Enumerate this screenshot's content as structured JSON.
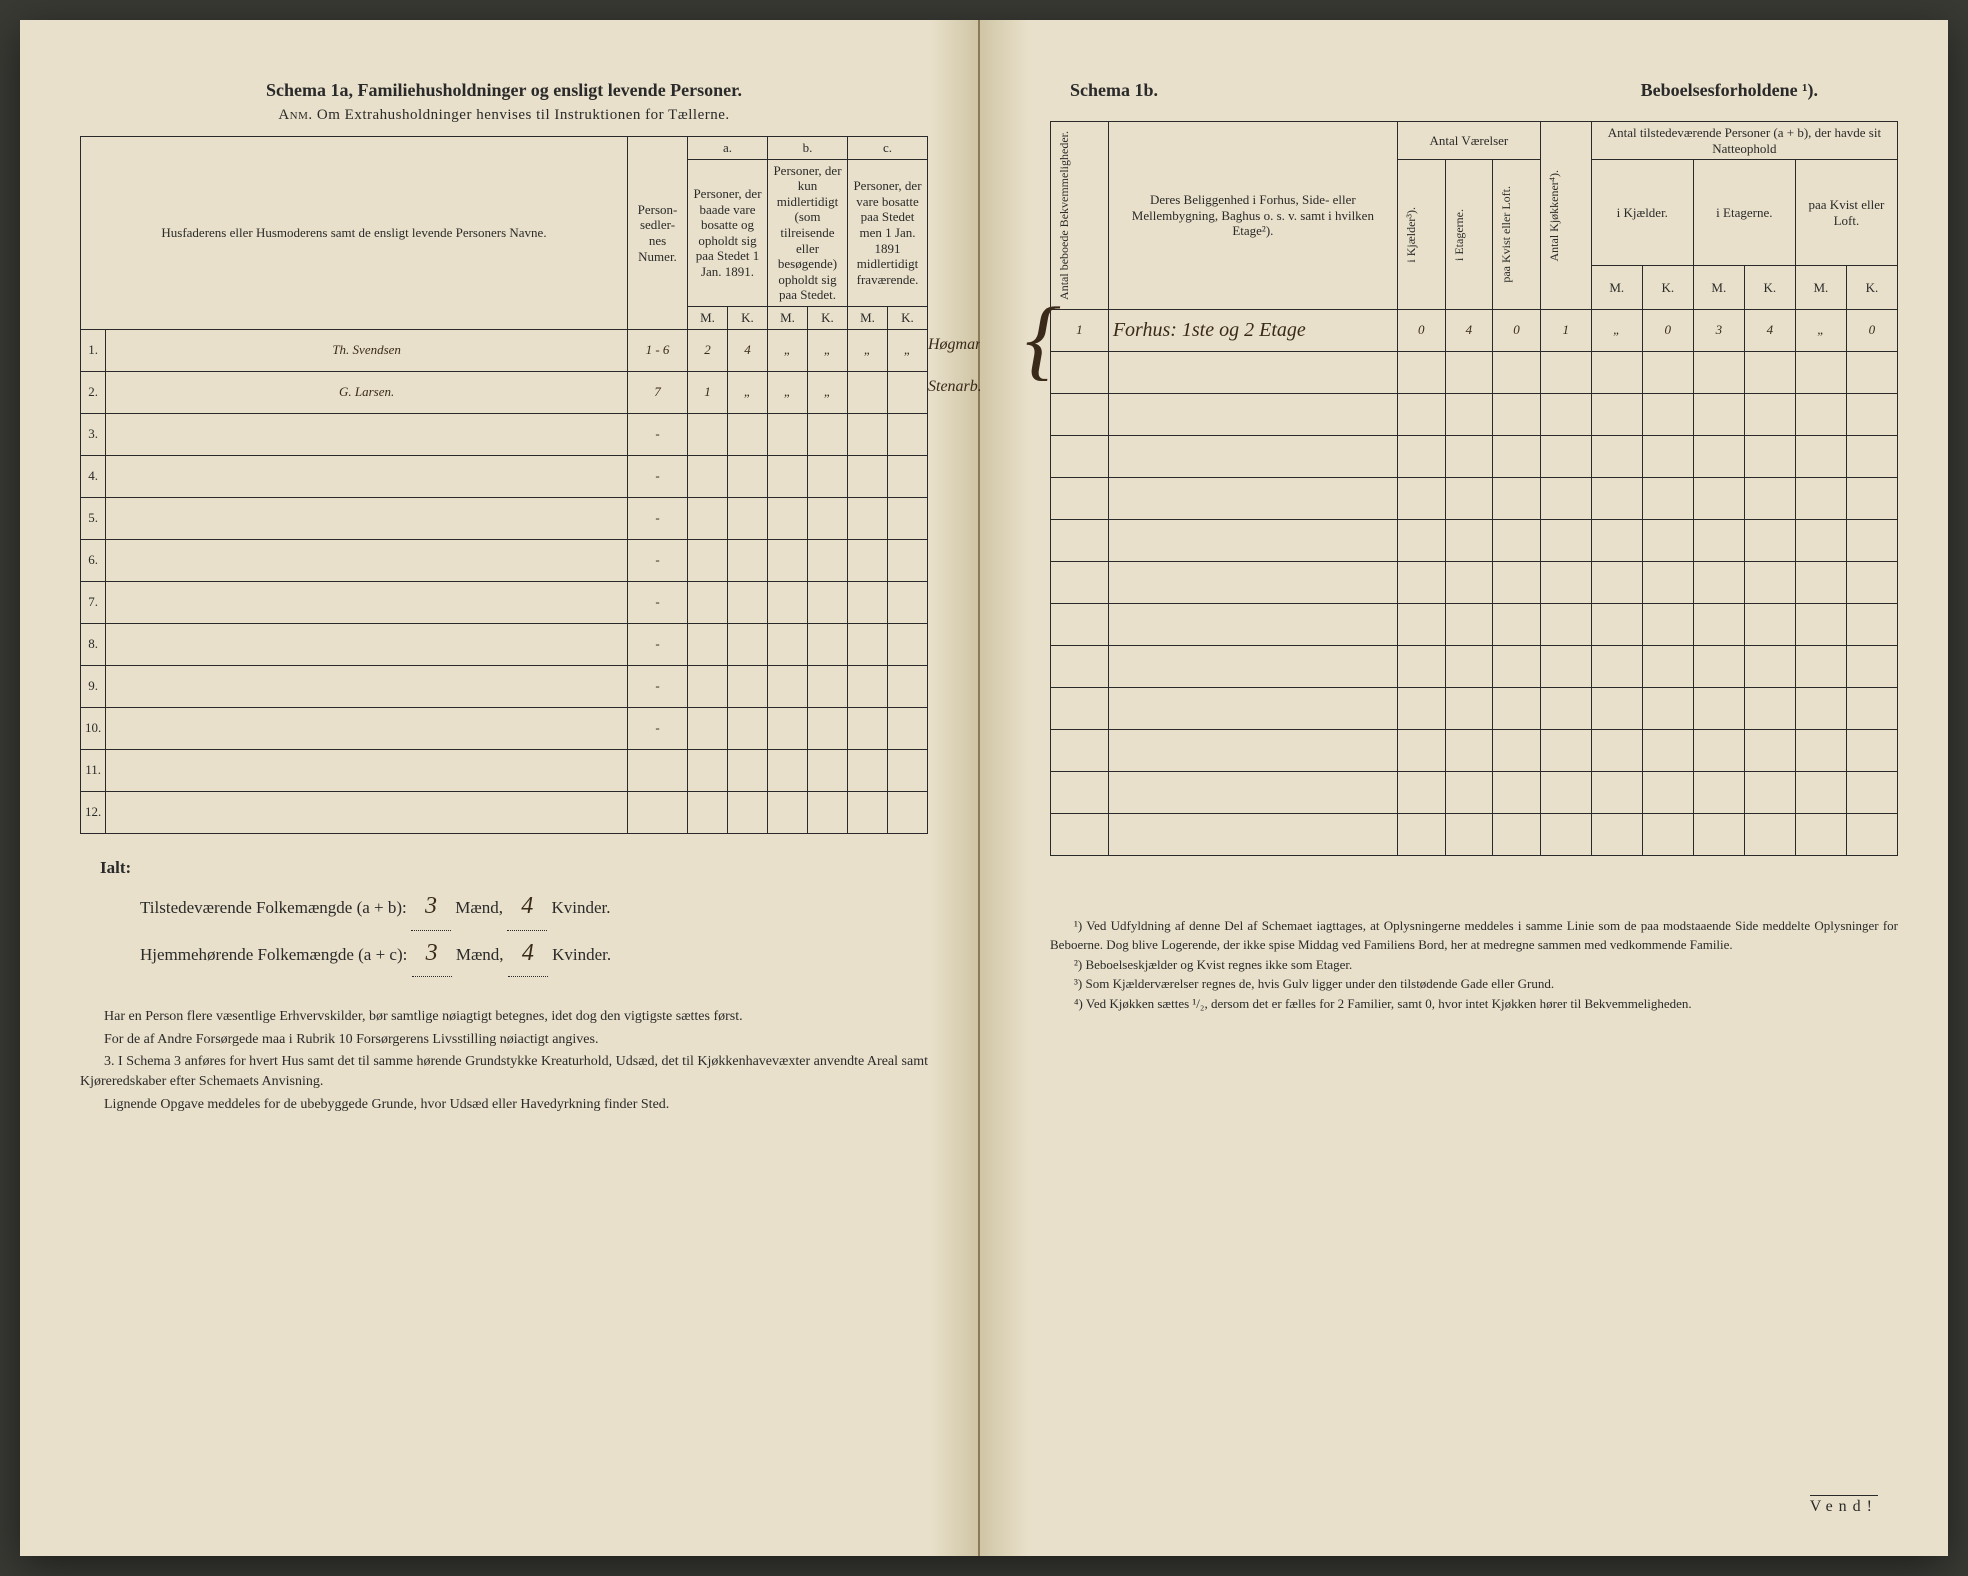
{
  "left": {
    "schema_label": "Schema 1a,",
    "schema_title": "Familiehusholdninger og ensligt levende Personer.",
    "subtitle_prefix": "Anm.",
    "subtitle": "Om Extrahusholdninger henvises til Instruktionen for Tællerne.",
    "headers": {
      "col1": "Husfaderens eller Husmoderens samt de ensligt levende Personers Navne.",
      "col2": "Person-sedler-nes Numer.",
      "a_label": "a.",
      "a_text": "Personer, der baade vare bosatte og opholdt sig paa Stedet 1 Jan. 1891.",
      "b_label": "b.",
      "b_text": "Personer, der kun midlertidigt (som tilreisende eller besøgende) opholdt sig paa Stedet.",
      "c_label": "c.",
      "c_text": "Personer, der vare bosatte paa Stedet men 1 Jan. 1891 midlertidigt fraværende.",
      "m": "M.",
      "k": "K."
    },
    "rows": [
      {
        "n": "1.",
        "name": "Th. Svendsen",
        "num": "1 - 6",
        "am": "2",
        "ak": "4",
        "bm": "„",
        "bk": "„",
        "cm": "„",
        "ck": "„",
        "note": "Høgmand"
      },
      {
        "n": "2.",
        "name": "G. Larsen.",
        "num": "7",
        "am": "1",
        "ak": "„",
        "bm": "„",
        "bk": "„",
        "cm": "",
        "ck": "",
        "note": "Stenarb."
      },
      {
        "n": "3.",
        "name": "",
        "num": "-",
        "am": "",
        "ak": "",
        "bm": "",
        "bk": "",
        "cm": "",
        "ck": "",
        "note": ""
      },
      {
        "n": "4.",
        "name": "",
        "num": "-",
        "am": "",
        "ak": "",
        "bm": "",
        "bk": "",
        "cm": "",
        "ck": "",
        "note": ""
      },
      {
        "n": "5.",
        "name": "",
        "num": "-",
        "am": "",
        "ak": "",
        "bm": "",
        "bk": "",
        "cm": "",
        "ck": "",
        "note": ""
      },
      {
        "n": "6.",
        "name": "",
        "num": "-",
        "am": "",
        "ak": "",
        "bm": "",
        "bk": "",
        "cm": "",
        "ck": "",
        "note": ""
      },
      {
        "n": "7.",
        "name": "",
        "num": "-",
        "am": "",
        "ak": "",
        "bm": "",
        "bk": "",
        "cm": "",
        "ck": "",
        "note": ""
      },
      {
        "n": "8.",
        "name": "",
        "num": "-",
        "am": "",
        "ak": "",
        "bm": "",
        "bk": "",
        "cm": "",
        "ck": "",
        "note": ""
      },
      {
        "n": "9.",
        "name": "",
        "num": "-",
        "am": "",
        "ak": "",
        "bm": "",
        "bk": "",
        "cm": "",
        "ck": "",
        "note": ""
      },
      {
        "n": "10.",
        "name": "",
        "num": "-",
        "am": "",
        "ak": "",
        "bm": "",
        "bk": "",
        "cm": "",
        "ck": "",
        "note": ""
      },
      {
        "n": "11.",
        "name": "",
        "num": "",
        "am": "",
        "ak": "",
        "bm": "",
        "bk": "",
        "cm": "",
        "ck": "",
        "note": ""
      },
      {
        "n": "12.",
        "name": "",
        "num": "",
        "am": "",
        "ak": "",
        "bm": "",
        "bk": "",
        "cm": "",
        "ck": "",
        "note": ""
      }
    ],
    "totals": {
      "ialt": "Ialt:",
      "line1_label": "Tilstedeværende Folkemængde (a + b):",
      "line1_m": "3",
      "line1_k": "4",
      "line2_label": "Hjemmehørende Folkemængde (a + c):",
      "line2_m": "3",
      "line2_k": "4",
      "maend": "Mænd,",
      "kvinder": "Kvinder."
    },
    "notes": [
      "Har en Person flere væsentlige Erhvervskilder, bør samtlige nøiagtigt betegnes, idet dog den vigtigste sættes først.",
      "For de af Andre Forsørgede maa i Rubrik 10 Forsørgerens Livsstilling nøiactigt angives.",
      "3. I Schema 3 anføres for hvert Hus samt det til samme hørende Grundstykke Kreaturhold, Udsæd, det til Kjøkkenhavevæxter anvendte Areal samt Kjøreredskaber efter Schemaets Anvisning.",
      "Lignende Opgave meddeles for de ubebyggede Grunde, hvor Udsæd eller Havedyrkning finder Sted."
    ]
  },
  "right": {
    "schema_label": "Schema 1b.",
    "schema_title": "Beboelsesforholdene ¹).",
    "headers": {
      "col0": "Antal beboede Bekvemmeligheder.",
      "col1": "Deres Beliggenhed i Forhus, Side- eller Mellembygning, Baghus o. s. v. samt i hvilken Etage²).",
      "grp_vaer": "Antal Værelser",
      "ikj": "i Kjælder³).",
      "iet": "i Etagerne.",
      "kvist": "paa Kvist eller Loft.",
      "kjok": "Antal Kjøkkener⁴).",
      "grp_pers": "Antal tilstedeværende Personer (a + b), der havde sit Natteophold",
      "p_ikj": "i Kjælder.",
      "p_iet": "i Etagerne.",
      "p_kvist": "paa Kvist eller Loft.",
      "m": "M.",
      "k": "K."
    },
    "rows": [
      {
        "n": "1",
        "loc": "Forhus: 1ste og 2 Etage",
        "kj": "0",
        "et": "4",
        "kv": "0",
        "kk": "1",
        "pkm": "„",
        "pkk": "0",
        "pem": "3",
        "pek": "4",
        "pvm": "„",
        "pvk": "0"
      }
    ],
    "empty_rows": 12,
    "footnotes": [
      "¹) Ved Udfyldning af denne Del af Schemaet iagttages, at Oplysningerne meddeles i samme Linie som de paa modstaaende Side meddelte Oplysninger for Beboerne. Dog blive Logerende, der ikke spise Middag ved Familiens Bord, her at medregne sammen med vedkommende Familie.",
      "²) Beboelseskjælder og Kvist regnes ikke som Etager.",
      "³) Som Kjælderværelser regnes de, hvis Gulv ligger under den tilstødende Gade eller Grund.",
      "⁴) Ved Kjøkken sættes ¹/₂, dersom det er fælles for 2 Familier, samt 0, hvor intet Kjøkken hører til Bekvemmeligheden."
    ],
    "vend": "Vend!"
  }
}
